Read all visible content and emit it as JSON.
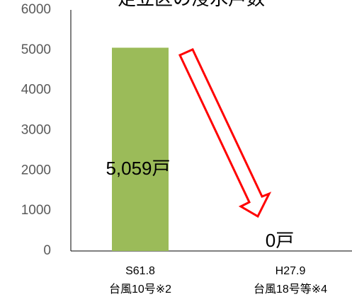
{
  "chart_data": {
    "type": "bar",
    "title": "足立区の浸水戸数",
    "categories": [
      [
        "S61.8",
        "台風10号※2"
      ],
      [
        "H27.9",
        "台風18号等※4"
      ]
    ],
    "values": [
      5059,
      0
    ],
    "value_labels": [
      "5,059戸",
      "0戸"
    ],
    "color": "#9bbb59",
    "ylim": [
      0,
      6000
    ],
    "yticks": [
      0,
      1000,
      2000,
      3000,
      4000,
      5000,
      6000
    ],
    "grid": false
  }
}
